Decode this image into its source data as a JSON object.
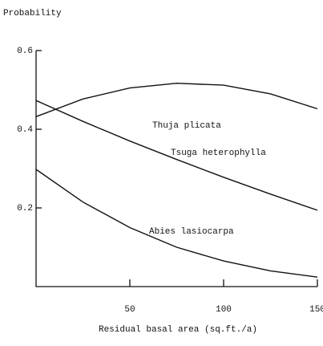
{
  "chart_data": {
    "type": "line",
    "ylabel": "Probability",
    "xlabel": "Residual basal area (sq.ft./a)",
    "x": [
      0,
      25,
      50,
      75,
      100,
      125,
      150
    ],
    "series": [
      {
        "name": "Thuja plicata",
        "color": "#111111",
        "values": [
          0.432,
          0.477,
          0.505,
          0.517,
          0.512,
          0.49,
          0.452
        ]
      },
      {
        "name": "Tsuga heterophylla",
        "color": "#111111",
        "values": [
          0.473,
          0.42,
          0.37,
          0.323,
          0.278,
          0.235,
          0.194
        ]
      },
      {
        "name": "Abies lasiocarpa",
        "color": "#111111",
        "values": [
          0.298,
          0.215,
          0.15,
          0.1,
          0.065,
          0.04,
          0.024
        ]
      }
    ],
    "xlim": [
      0,
      150
    ],
    "xticks": [
      50,
      100,
      150
    ],
    "ylim": [
      0,
      0.6
    ],
    "yticks": [
      0.2,
      0.4,
      0.6
    ]
  }
}
